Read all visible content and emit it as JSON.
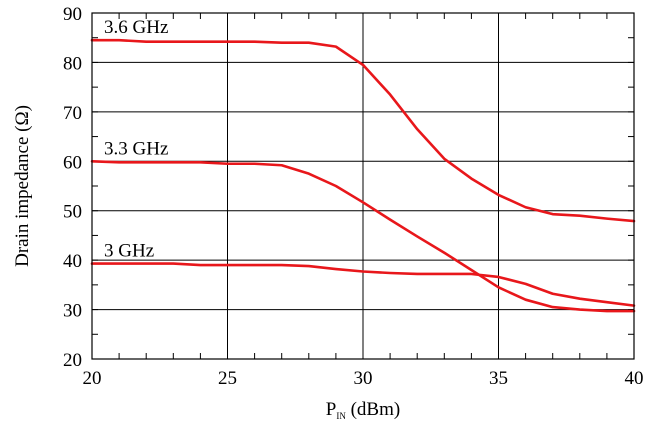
{
  "chart_data": {
    "type": "line",
    "title": "",
    "xlabel": "P",
    "xlabel_sub": "IN",
    "xlabel_suffix": " (dBm)",
    "ylabel": "Drain impedance (Ω)",
    "xlim": [
      20,
      40
    ],
    "ylim": [
      20,
      90
    ],
    "xticks": [
      20,
      25,
      30,
      35,
      40
    ],
    "yticks": [
      20,
      30,
      40,
      50,
      60,
      70,
      80,
      90
    ],
    "x_minor_step": 1,
    "y_minor_step": 5,
    "grid": true,
    "legend": "none",
    "line_color": "#e8171b",
    "series": [
      {
        "name": "3.6 GHz",
        "x": [
          20,
          21,
          22,
          23,
          24,
          25,
          26,
          27,
          28,
          29,
          30,
          31,
          32,
          33,
          34,
          35,
          36,
          37,
          38,
          39,
          40
        ],
        "y": [
          84.5,
          84.5,
          84.2,
          84.2,
          84.2,
          84.2,
          84.2,
          84.0,
          84.0,
          83.2,
          79.5,
          73.5,
          66.5,
          60.5,
          56.5,
          53.2,
          50.7,
          49.3,
          49.0,
          48.4,
          47.9
        ]
      },
      {
        "name": "3.3 GHz",
        "x": [
          20,
          21,
          22,
          23,
          24,
          25,
          26,
          27,
          28,
          29,
          30,
          31,
          32,
          33,
          34,
          35,
          36,
          37,
          38,
          39,
          40
        ],
        "y": [
          60.0,
          59.8,
          59.8,
          59.8,
          59.8,
          59.5,
          59.5,
          59.2,
          57.5,
          55.0,
          51.7,
          48.2,
          44.8,
          41.5,
          38.0,
          34.5,
          32.0,
          30.5,
          30.0,
          29.7,
          29.7
        ]
      },
      {
        "name": "3 GHz",
        "x": [
          20,
          21,
          22,
          23,
          24,
          25,
          26,
          27,
          28,
          29,
          30,
          31,
          32,
          33,
          34,
          35,
          36,
          37,
          38,
          39,
          40
        ],
        "y": [
          39.3,
          39.3,
          39.3,
          39.3,
          39.0,
          39.0,
          39.0,
          39.0,
          38.8,
          38.2,
          37.7,
          37.4,
          37.2,
          37.2,
          37.2,
          36.6,
          35.2,
          33.2,
          32.2,
          31.5,
          30.8
        ]
      }
    ]
  }
}
